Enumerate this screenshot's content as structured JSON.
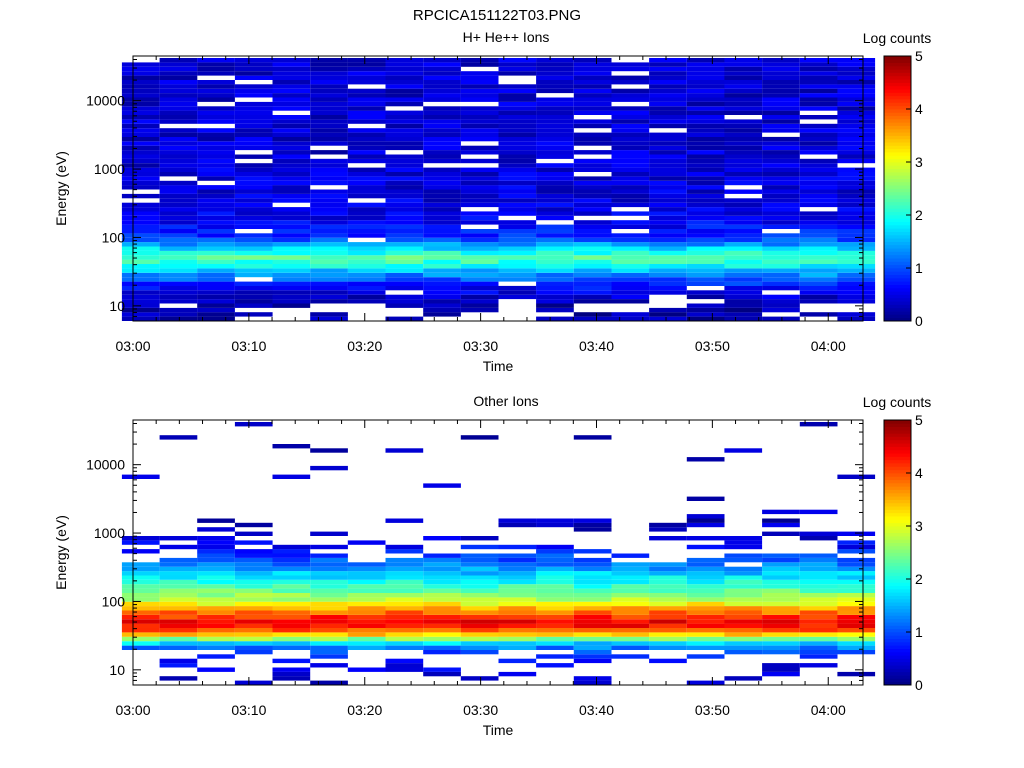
{
  "figure_title": "RPCICA151122T03.PNG",
  "colormap": [
    "#000080",
    "#0000ff",
    "#0080ff",
    "#00ffff",
    "#80ff80",
    "#ffff00",
    "#ff8000",
    "#ff0000",
    "#800000"
  ],
  "chart_data": [
    {
      "type": "heatmap",
      "title": "H+ He++ Ions",
      "xlabel": "Time",
      "ylabel": "Energy (eV)",
      "yscale": "log",
      "ylim": [
        6,
        45000
      ],
      "x_ticks": [
        "03:00",
        "03:10",
        "03:20",
        "03:30",
        "03:40",
        "03:50",
        "04:00"
      ],
      "y_ticks": [
        "10",
        "100",
        "1000",
        "10000"
      ],
      "colorbar": {
        "label": "Log counts",
        "range": [
          0,
          5
        ],
        "ticks": [
          "0",
          "1",
          "2",
          "3",
          "4",
          "5"
        ]
      },
      "time_bins": [
        "03:00:40",
        "03:03:55",
        "03:07:10",
        "03:10:25",
        "03:13:40",
        "03:16:55",
        "03:20:10",
        "03:23:25",
        "03:26:40",
        "03:29:55",
        "03:33:10",
        "03:36:25",
        "03:39:40",
        "03:42:55",
        "03:46:10",
        "03:49:25",
        "03:52:40",
        "03:55:55",
        "03:59:10",
        "04:02:25"
      ],
      "band_profile": {
        "energy_ev": [
          8,
          10,
          12,
          15,
          18,
          22,
          27,
          33,
          40,
          50,
          60,
          75,
          90,
          110,
          140,
          180,
          250,
          400,
          700,
          1500,
          4000,
          15000,
          40000
        ],
        "log_counts": [
          0.2,
          0.25,
          0.3,
          0.45,
          0.6,
          0.9,
          1.2,
          1.6,
          2.0,
          2.3,
          2.0,
          1.5,
          1.05,
          0.8,
          0.65,
          0.55,
          0.5,
          0.45,
          0.45,
          0.4,
          0.4,
          0.4,
          0.4
        ]
      },
      "empty_fraction": 0.08
    },
    {
      "type": "heatmap",
      "title": "Other Ions",
      "xlabel": "Time",
      "ylabel": "Energy (eV)",
      "yscale": "log",
      "ylim": [
        6,
        45000
      ],
      "x_ticks": [
        "03:00",
        "03:10",
        "03:20",
        "03:30",
        "03:40",
        "03:50",
        "04:00"
      ],
      "y_ticks": [
        "10",
        "100",
        "1000",
        "10000"
      ],
      "colorbar": {
        "label": "Log counts",
        "range": [
          0,
          5
        ],
        "ticks": [
          "0",
          "1",
          "2",
          "3",
          "4",
          "5"
        ]
      },
      "time_bins": [
        "03:00:40",
        "03:03:55",
        "03:07:10",
        "03:10:25",
        "03:13:40",
        "03:16:55",
        "03:20:10",
        "03:23:25",
        "03:26:40",
        "03:29:55",
        "03:33:10",
        "03:36:25",
        "03:39:40",
        "03:42:55",
        "03:46:10",
        "03:49:25",
        "03:52:40",
        "03:55:55",
        "03:59:10",
        "04:02:25"
      ],
      "band_profile": {
        "energy_ev": [
          8,
          10,
          13,
          17,
          20,
          24,
          28,
          33,
          40,
          48,
          58,
          70,
          85,
          100,
          130,
          170,
          220,
          300,
          420,
          600,
          900,
          1500,
          3000,
          10000,
          30000
        ],
        "log_counts": [
          0.35,
          0.45,
          0.55,
          0.8,
          1.1,
          1.6,
          2.5,
          3.4,
          4.2,
          4.5,
          4.2,
          3.8,
          3.3,
          2.9,
          2.5,
          2.1,
          1.8,
          1.4,
          1.0,
          0.7,
          0.4,
          0.3,
          0.3,
          0.3,
          0.3
        ]
      },
      "empty_fraction": 0.6,
      "high_energy_cutoff_ev": [
        900,
        1300,
        1600,
        1600,
        700,
        1200,
        380,
        900,
        1600,
        1300,
        2300,
        1700,
        1700,
        1000,
        1500,
        2000,
        1100,
        2100,
        1300,
        1400
      ]
    }
  ]
}
